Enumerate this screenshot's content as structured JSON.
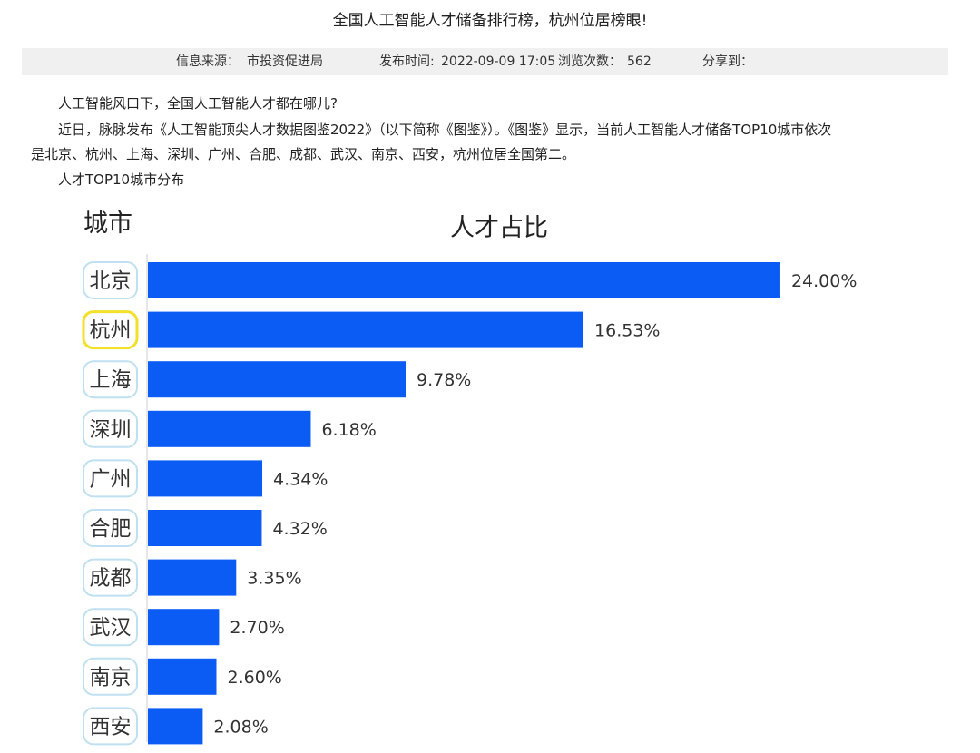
{
  "article": {
    "title": "全国人工智能人才储备排行榜，杭州位居榜眼!",
    "meta": {
      "source_label": "信息来源：",
      "source_value": "市投资促进局",
      "publish_label": "发布时间:",
      "publish_value": "2022-09-09 17:05",
      "views_label": "浏览次数：",
      "views_value": "562",
      "share_label": "分享到："
    },
    "para1": "人工智能风口下，全国人工智能人才都在哪儿?",
    "para2_line1": "近日，脉脉发布《人工智能顶尖人才数据图鉴2022》（以下简称《图鉴》）。《图鉴》显示，当前人工智能人才储备TOP10城市依次",
    "para2_line2": "是北京、杭州、上海、深圳、广州、合肥、成都、武汉、南京、西安，杭州位居全国第二。",
    "para3": "人才TOP10城市分布"
  },
  "chart_data": {
    "type": "bar",
    "orientation": "horizontal",
    "title": "人才占比",
    "ylabel": "城市",
    "categories": [
      "北京",
      "杭州",
      "上海",
      "深圳",
      "广州",
      "合肥",
      "成都",
      "武汉",
      "南京",
      "西安"
    ],
    "values": [
      24.0,
      16.53,
      9.78,
      6.18,
      4.34,
      4.32,
      3.35,
      2.7,
      2.6,
      2.08
    ],
    "value_labels": [
      "24.00%",
      "16.53%",
      "9.78%",
      "6.18%",
      "4.34%",
      "4.32%",
      "3.35%",
      "2.70%",
      "2.60%",
      "2.08%"
    ],
    "highlight_category": "杭州",
    "bar_color": "#0a5cf5",
    "highlight_border_color": "#f2e02a",
    "label_border_color": "#bfe0f0"
  }
}
